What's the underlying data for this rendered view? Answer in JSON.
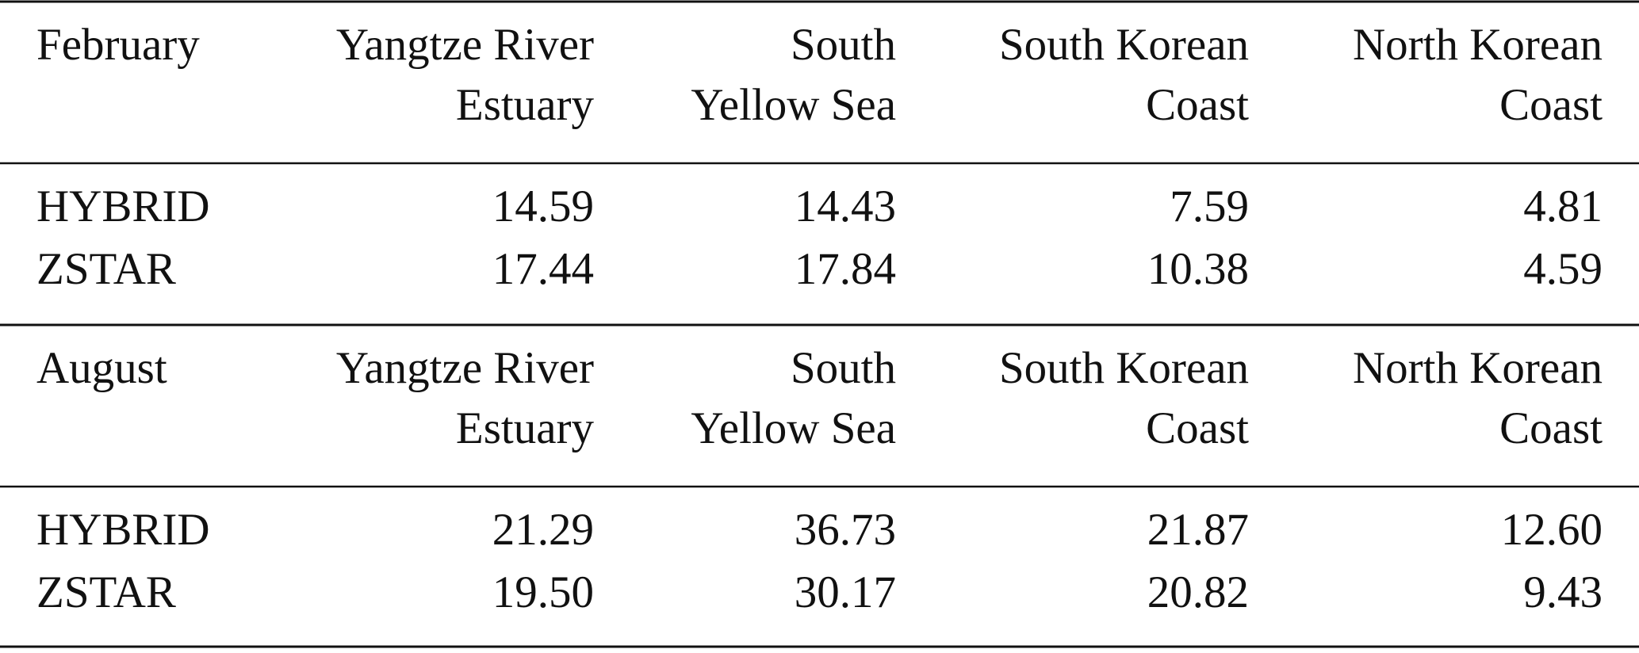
{
  "table": {
    "sections": [
      {
        "header": [
          "February",
          [
            "Yangtze River",
            "Estuary"
          ],
          [
            "South",
            "Yellow Sea"
          ],
          [
            "South Korean",
            "Coast"
          ],
          [
            "North Korean",
            "Coast"
          ]
        ],
        "rows": [
          [
            "HYBRID",
            "14.59",
            "14.43",
            "7.59",
            "4.81"
          ],
          [
            "ZSTAR",
            "17.44",
            "17.84",
            "10.38",
            "4.59"
          ]
        ]
      },
      {
        "header": [
          "August",
          [
            "Yangtze River",
            "Estuary"
          ],
          [
            "South",
            "Yellow Sea"
          ],
          [
            "South Korean",
            "Coast"
          ],
          [
            "North Korean",
            "Coast"
          ]
        ],
        "rows": [
          [
            "HYBRID",
            "21.29",
            "36.73",
            "21.87",
            "12.60"
          ],
          [
            "ZSTAR",
            "19.50",
            "30.17",
            "20.82",
            "9.43"
          ]
        ]
      }
    ]
  }
}
